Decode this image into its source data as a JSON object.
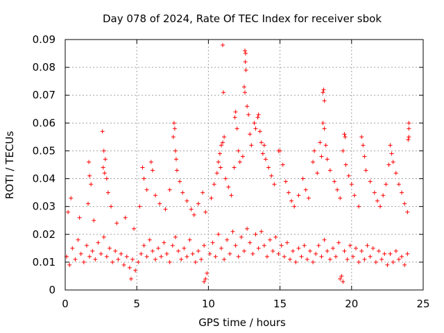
{
  "chart_data": {
    "type": "scatter",
    "title": "Day 078 of 2024, Rate Of TEC Index for receiver sbok",
    "xlabel": "GPS time / hours",
    "ylabel": "ROTI / TECUs",
    "xlim": [
      0,
      25
    ],
    "ylim": [
      0,
      0.09
    ],
    "xticks": [
      0,
      5,
      10,
      15,
      20,
      25
    ],
    "xtick_labels": [
      "0",
      "5",
      "10",
      "15",
      "20",
      "25"
    ],
    "yticks": [
      0,
      0.01,
      0.02,
      0.03,
      0.04,
      0.05,
      0.06,
      0.07,
      0.08,
      0.09
    ],
    "ytick_labels": [
      "0",
      "0.01",
      "0.02",
      "0.03",
      "0.04",
      "0.05",
      "0.06",
      "0.07",
      "0.08",
      "0.09"
    ],
    "grid": true,
    "marker": "+",
    "color": "#ff0000",
    "series": [
      {
        "name": "ROTI",
        "note": "dense band of many thousands of points; representative subset recorded",
        "points": [
          [
            0.1,
            0.012
          ],
          [
            0.3,
            0.009
          ],
          [
            0.5,
            0.015
          ],
          [
            0.7,
            0.011
          ],
          [
            0.9,
            0.018
          ],
          [
            1.1,
            0.013
          ],
          [
            1.3,
            0.01
          ],
          [
            1.5,
            0.016
          ],
          [
            1.7,
            0.012
          ],
          [
            1.9,
            0.014
          ],
          [
            2.1,
            0.011
          ],
          [
            2.3,
            0.017
          ],
          [
            2.5,
            0.013
          ],
          [
            2.7,
            0.019
          ],
          [
            2.9,
            0.012
          ],
          [
            3.1,
            0.015
          ],
          [
            3.3,
            0.01
          ],
          [
            3.5,
            0.014
          ],
          [
            3.7,
            0.011
          ],
          [
            3.9,
            0.013
          ],
          [
            4.1,
            0.009
          ],
          [
            4.3,
            0.012
          ],
          [
            4.5,
            0.008
          ],
          [
            4.7,
            0.011
          ],
          [
            4.9,
            0.007
          ],
          [
            5.1,
            0.01
          ],
          [
            5.3,
            0.013
          ],
          [
            5.5,
            0.016
          ],
          [
            5.7,
            0.012
          ],
          [
            5.9,
            0.018
          ],
          [
            6.1,
            0.014
          ],
          [
            6.3,
            0.011
          ],
          [
            6.5,
            0.015
          ],
          [
            6.7,
            0.012
          ],
          [
            6.9,
            0.017
          ],
          [
            7.1,
            0.013
          ],
          [
            7.3,
            0.01
          ],
          [
            7.5,
            0.016
          ],
          [
            7.7,
            0.019
          ],
          [
            7.9,
            0.014
          ],
          [
            8.1,
            0.011
          ],
          [
            8.3,
            0.015
          ],
          [
            8.5,
            0.012
          ],
          [
            8.7,
            0.018
          ],
          [
            8.9,
            0.013
          ],
          [
            9.1,
            0.01
          ],
          [
            9.3,
            0.014
          ],
          [
            9.5,
            0.011
          ],
          [
            9.7,
            0.016
          ],
          [
            9.9,
            0.006
          ],
          [
            10.1,
            0.013
          ],
          [
            10.3,
            0.017
          ],
          [
            10.5,
            0.012
          ],
          [
            10.7,
            0.02
          ],
          [
            10.9,
            0.015
          ],
          [
            11.1,
            0.011
          ],
          [
            11.3,
            0.018
          ],
          [
            11.5,
            0.013
          ],
          [
            11.7,
            0.021
          ],
          [
            11.9,
            0.016
          ],
          [
            12.1,
            0.012
          ],
          [
            12.3,
            0.019
          ],
          [
            12.5,
            0.014
          ],
          [
            12.7,
            0.022
          ],
          [
            12.9,
            0.017
          ],
          [
            13.1,
            0.013
          ],
          [
            13.3,
            0.02
          ],
          [
            13.5,
            0.015
          ],
          [
            13.7,
            0.021
          ],
          [
            13.9,
            0.016
          ],
          [
            14.1,
            0.012
          ],
          [
            14.3,
            0.018
          ],
          [
            14.5,
            0.014
          ],
          [
            14.7,
            0.019
          ],
          [
            14.9,
            0.013
          ],
          [
            15.1,
            0.016
          ],
          [
            15.3,
            0.012
          ],
          [
            15.5,
            0.017
          ],
          [
            15.7,
            0.011
          ],
          [
            15.9,
            0.014
          ],
          [
            16.1,
            0.01
          ],
          [
            16.3,
            0.015
          ],
          [
            16.5,
            0.012
          ],
          [
            16.7,
            0.016
          ],
          [
            16.9,
            0.011
          ],
          [
            17.1,
            0.014
          ],
          [
            17.3,
            0.01
          ],
          [
            17.5,
            0.013
          ],
          [
            17.7,
            0.016
          ],
          [
            17.9,
            0.012
          ],
          [
            18.1,
            0.018
          ],
          [
            18.3,
            0.014
          ],
          [
            18.5,
            0.011
          ],
          [
            18.7,
            0.015
          ],
          [
            18.9,
            0.012
          ],
          [
            19.1,
            0.017
          ],
          [
            19.3,
            0.005
          ],
          [
            19.5,
            0.014
          ],
          [
            19.7,
            0.011
          ],
          [
            19.9,
            0.016
          ],
          [
            20.1,
            0.012
          ],
          [
            20.3,
            0.015
          ],
          [
            20.5,
            0.01
          ],
          [
            20.7,
            0.014
          ],
          [
            20.9,
            0.011
          ],
          [
            21.1,
            0.016
          ],
          [
            21.3,
            0.012
          ],
          [
            21.5,
            0.015
          ],
          [
            21.7,
            0.01
          ],
          [
            21.9,
            0.014
          ],
          [
            22.1,
            0.011
          ],
          [
            22.3,
            0.013
          ],
          [
            22.5,
            0.009
          ],
          [
            22.7,
            0.013
          ],
          [
            22.9,
            0.01
          ],
          [
            23.1,
            0.014
          ],
          [
            23.3,
            0.011
          ],
          [
            23.5,
            0.012
          ],
          [
            23.7,
            0.009
          ],
          [
            23.9,
            0.013
          ],
          [
            0.2,
            0.028
          ],
          [
            0.4,
            0.033
          ],
          [
            1.0,
            0.026
          ],
          [
            1.6,
            0.031
          ],
          [
            2.0,
            0.025
          ],
          [
            2.6,
            0.057
          ],
          [
            2.7,
            0.05
          ],
          [
            2.8,
            0.047
          ],
          [
            2.65,
            0.044
          ],
          [
            2.75,
            0.042
          ],
          [
            2.9,
            0.04
          ],
          [
            3.0,
            0.035
          ],
          [
            3.2,
            0.03
          ],
          [
            1.65,
            0.046
          ],
          [
            1.7,
            0.041
          ],
          [
            1.8,
            0.038
          ],
          [
            3.6,
            0.024
          ],
          [
            4.2,
            0.026
          ],
          [
            4.8,
            0.022
          ],
          [
            5.2,
            0.03
          ],
          [
            5.4,
            0.044
          ],
          [
            5.5,
            0.04
          ],
          [
            5.7,
            0.036
          ],
          [
            6.0,
            0.046
          ],
          [
            6.1,
            0.043
          ],
          [
            6.3,
            0.034
          ],
          [
            6.6,
            0.031
          ],
          [
            7.0,
            0.029
          ],
          [
            7.3,
            0.036
          ],
          [
            7.6,
            0.06
          ],
          [
            7.65,
            0.058
          ],
          [
            7.55,
            0.055
          ],
          [
            7.7,
            0.05
          ],
          [
            7.75,
            0.047
          ],
          [
            7.8,
            0.043
          ],
          [
            8.0,
            0.039
          ],
          [
            8.2,
            0.035
          ],
          [
            8.5,
            0.032
          ],
          [
            8.8,
            0.029
          ],
          [
            9.0,
            0.027
          ],
          [
            9.3,
            0.031
          ],
          [
            9.6,
            0.035
          ],
          [
            9.8,
            0.028
          ],
          [
            10.2,
            0.033
          ],
          [
            10.4,
            0.038
          ],
          [
            10.6,
            0.042
          ],
          [
            10.7,
            0.046
          ],
          [
            10.8,
            0.049
          ],
          [
            10.9,
            0.052
          ],
          [
            11.0,
            0.088
          ],
          [
            11.05,
            0.071
          ],
          [
            11.1,
            0.055
          ],
          [
            11.0,
            0.053
          ],
          [
            10.85,
            0.044
          ],
          [
            11.2,
            0.04
          ],
          [
            11.4,
            0.037
          ],
          [
            11.6,
            0.034
          ],
          [
            11.8,
            0.044
          ],
          [
            11.85,
            0.062
          ],
          [
            11.9,
            0.064
          ],
          [
            12.0,
            0.058
          ],
          [
            12.1,
            0.05
          ],
          [
            12.2,
            0.046
          ],
          [
            12.4,
            0.048
          ],
          [
            12.55,
            0.086
          ],
          [
            12.6,
            0.085
          ],
          [
            12.58,
            0.082
          ],
          [
            12.62,
            0.079
          ],
          [
            12.5,
            0.073
          ],
          [
            12.55,
            0.071
          ],
          [
            12.7,
            0.066
          ],
          [
            12.8,
            0.063
          ],
          [
            12.9,
            0.056
          ],
          [
            13.0,
            0.052
          ],
          [
            13.2,
            0.06
          ],
          [
            13.3,
            0.058
          ],
          [
            13.45,
            0.062
          ],
          [
            13.5,
            0.063
          ],
          [
            13.6,
            0.057
          ],
          [
            13.7,
            0.053
          ],
          [
            13.8,
            0.049
          ],
          [
            13.9,
            0.052
          ],
          [
            14.0,
            0.047
          ],
          [
            14.2,
            0.044
          ],
          [
            14.4,
            0.041
          ],
          [
            14.6,
            0.038
          ],
          [
            14.9,
            0.05
          ],
          [
            15.0,
            0.05
          ],
          [
            15.2,
            0.045
          ],
          [
            15.4,
            0.039
          ],
          [
            15.6,
            0.035
          ],
          [
            15.8,
            0.032
          ],
          [
            16.0,
            0.03
          ],
          [
            16.3,
            0.034
          ],
          [
            16.6,
            0.04
          ],
          [
            16.8,
            0.036
          ],
          [
            17.0,
            0.033
          ],
          [
            17.3,
            0.046
          ],
          [
            17.4,
            0.05
          ],
          [
            17.6,
            0.042
          ],
          [
            17.8,
            0.053
          ],
          [
            17.9,
            0.048
          ],
          [
            18.0,
            0.071
          ],
          [
            18.05,
            0.072
          ],
          [
            18.1,
            0.068
          ],
          [
            18.0,
            0.06
          ],
          [
            18.1,
            0.058
          ],
          [
            18.2,
            0.052
          ],
          [
            18.3,
            0.047
          ],
          [
            18.5,
            0.043
          ],
          [
            18.8,
            0.039
          ],
          [
            19.0,
            0.036
          ],
          [
            19.2,
            0.033
          ],
          [
            19.5,
            0.056
          ],
          [
            19.55,
            0.055
          ],
          [
            19.4,
            0.05
          ],
          [
            19.6,
            0.045
          ],
          [
            19.8,
            0.041
          ],
          [
            20.0,
            0.038
          ],
          [
            20.2,
            0.034
          ],
          [
            20.5,
            0.03
          ],
          [
            20.7,
            0.055
          ],
          [
            20.8,
            0.052
          ],
          [
            20.9,
            0.048
          ],
          [
            21.0,
            0.043
          ],
          [
            21.3,
            0.039
          ],
          [
            21.6,
            0.035
          ],
          [
            21.8,
            0.032
          ],
          [
            22.0,
            0.03
          ],
          [
            22.2,
            0.034
          ],
          [
            22.4,
            0.038
          ],
          [
            22.6,
            0.045
          ],
          [
            22.7,
            0.052
          ],
          [
            22.8,
            0.049
          ],
          [
            22.9,
            0.046
          ],
          [
            23.1,
            0.042
          ],
          [
            23.3,
            0.038
          ],
          [
            23.5,
            0.035
          ],
          [
            23.7,
            0.031
          ],
          [
            23.9,
            0.028
          ],
          [
            24.0,
            0.06
          ],
          [
            24.0,
            0.058
          ],
          [
            24.0,
            0.055
          ],
          [
            23.95,
            0.054
          ],
          [
            4.6,
            0.004
          ],
          [
            9.7,
            0.003
          ],
          [
            9.8,
            0.004
          ],
          [
            19.2,
            0.004
          ],
          [
            19.4,
            0.003
          ]
        ]
      }
    ]
  }
}
